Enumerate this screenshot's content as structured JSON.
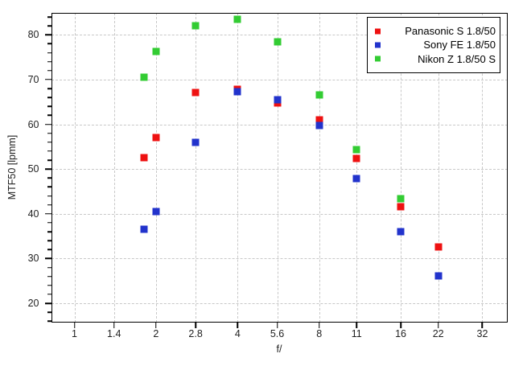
{
  "colors": {
    "background": "#ffffff",
    "grid": "#c8c8c8",
    "axis": "#000000",
    "tick_text": "#222222"
  },
  "chart_data": {
    "type": "scatter",
    "title": "",
    "xlabel": "f/",
    "ylabel": "MTF50 [lpmm]",
    "x_scale": "log2",
    "grid": "dashed",
    "legend_position": "top-right",
    "marker": "square",
    "marker_size_px": 9,
    "xlim": [
      0.82,
      39.7
    ],
    "ylim": [
      15.7,
      85
    ],
    "x_ticks": [
      1,
      1.4,
      2,
      2.8,
      4,
      5.6,
      8,
      11,
      16,
      22,
      32
    ],
    "x_tick_labels": [
      "1",
      "1.4",
      "2",
      "2.8",
      "4",
      "5.6",
      "8",
      "11",
      "16",
      "22",
      "32"
    ],
    "y_ticks": [
      20,
      30,
      40,
      50,
      60,
      70,
      80
    ],
    "y_minor_step": 2,
    "x": [
      1.8,
      2,
      2.8,
      4,
      5.6,
      8,
      11,
      16,
      22
    ],
    "series": [
      {
        "name": "Panasonic S 1.8/50",
        "color": "#ee1111",
        "values": [
          52.6,
          57.1,
          67.2,
          67.9,
          64.8,
          61.0,
          52.4,
          41.6,
          32.6
        ]
      },
      {
        "name": "Sony FE 1.8/50",
        "color": "#2233cc",
        "values": [
          36.6,
          40.5,
          56.0,
          67.3,
          65.5,
          59.8,
          47.9,
          36.0,
          26.1
        ]
      },
      {
        "name": "Nikon Z 1.8/50 S",
        "color": "#33cc33",
        "values": [
          70.6,
          76.2,
          82.0,
          83.5,
          78.4,
          66.6,
          54.3,
          43.4,
          null
        ]
      }
    ]
  }
}
